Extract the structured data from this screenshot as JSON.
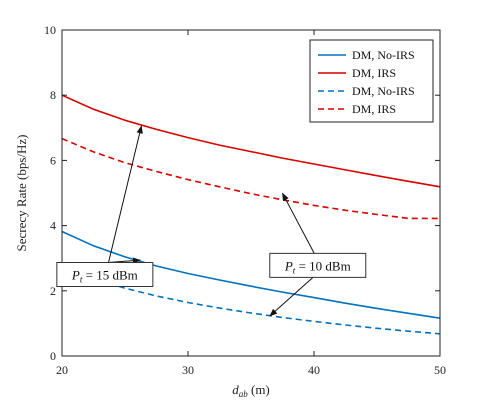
{
  "chart_data": {
    "type": "line",
    "xlabel_main": "d",
    "xlabel_sub": "ab",
    "xlabel_unit": "(m)",
    "ylabel": "Secrecy Rate (bps/Hz)",
    "xlim": [
      20,
      50
    ],
    "ylim": [
      0,
      10
    ],
    "xticks": [
      20,
      30,
      40,
      50
    ],
    "yticks": [
      0,
      2,
      4,
      6,
      8,
      10
    ],
    "grid": false,
    "legend_position": "top-right",
    "x": [
      20,
      22.5,
      25,
      27.5,
      30,
      32.5,
      35,
      37.5,
      40,
      42.5,
      45,
      47.5,
      50
    ],
    "series": [
      {
        "name": "DM, No-IRS",
        "color": "#0072BD",
        "dash": "solid",
        "values": [
          3.82,
          3.38,
          3.04,
          2.76,
          2.53,
          2.33,
          2.14,
          1.96,
          1.79,
          1.62,
          1.46,
          1.31,
          1.16
        ]
      },
      {
        "name": "DM, IRS",
        "color": "#D90000",
        "dash": "solid",
        "values": [
          8.0,
          7.57,
          7.23,
          6.95,
          6.7,
          6.47,
          6.27,
          6.07,
          5.89,
          5.71,
          5.53,
          5.36,
          5.19
        ]
      },
      {
        "name": "DM, No-IRS",
        "color": "#0072BD",
        "dash": "dashed",
        "values": [
          2.72,
          2.37,
          2.08,
          1.84,
          1.64,
          1.47,
          1.32,
          1.18,
          1.06,
          0.95,
          0.85,
          0.76,
          0.68
        ]
      },
      {
        "name": "DM, IRS",
        "color": "#D90000",
        "dash": "dashed",
        "values": [
          6.67,
          6.26,
          5.93,
          5.66,
          5.41,
          5.19,
          4.98,
          4.79,
          4.62,
          4.47,
          4.34,
          4.22,
          4.22
        ]
      }
    ],
    "annotations": [
      {
        "label_main": "P",
        "label_sub": "t",
        "label_rest": " = 15 dBm",
        "text_at": [
          23.4,
          2.5
        ],
        "arrow_targets": [
          [
            26.3,
            7.05
          ],
          [
            26.2,
            2.94
          ]
        ]
      },
      {
        "label_main": "P",
        "label_sub": "t",
        "label_rest": " = 10 dBm",
        "text_at": [
          40.3,
          2.78
        ],
        "arrow_targets": [
          [
            37.5,
            4.99
          ],
          [
            36.5,
            1.23
          ]
        ]
      }
    ]
  }
}
